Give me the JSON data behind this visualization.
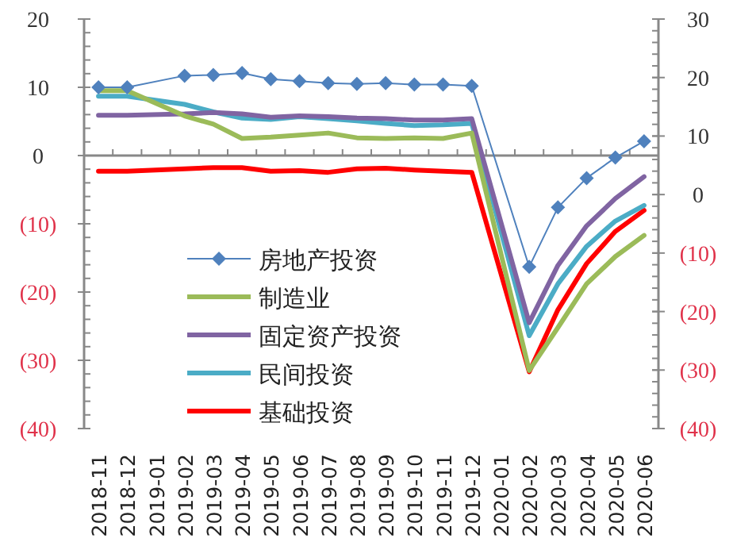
{
  "chart_data": {
    "type": "line",
    "categories": [
      "2018-11",
      "2018-12",
      "2019-01",
      "2019-02",
      "2019-03",
      "2019-04",
      "2019-05",
      "2019-06",
      "2019-07",
      "2019-08",
      "2019-09",
      "2019-10",
      "2019-11",
      "2019-12",
      "2020-01",
      "2020-02",
      "2020-03",
      "2020-04",
      "2020-05",
      "2020-06"
    ],
    "ylim": [
      -40,
      20
    ],
    "yticks": [
      {
        "value": -40,
        "label": "(40)"
      },
      {
        "value": -30,
        "label": "(30)"
      },
      {
        "value": -20,
        "label": "(20)"
      },
      {
        "value": -10,
        "label": "(10)"
      },
      0,
      10,
      20
    ],
    "y2lim": [
      -40,
      30
    ],
    "y2ticks": [
      {
        "value": -40,
        "label": "(40)"
      },
      {
        "value": -30,
        "label": "(30)"
      },
      {
        "value": -20,
        "label": "(20)"
      },
      {
        "value": -10,
        "label": "(10)"
      },
      0,
      10,
      20,
      30
    ],
    "legend": "bottom left",
    "series": [
      {
        "name": "房地产投资",
        "color": "#4f81bd",
        "marker": "diamond",
        "values": [
          10.0,
          10.0,
          null,
          11.7,
          11.8,
          12.1,
          11.2,
          10.9,
          10.6,
          10.5,
          10.6,
          10.4,
          10.4,
          10.2,
          null,
          -16.3,
          -7.6,
          -3.3,
          -0.3,
          2.1
        ]
      },
      {
        "name": "制造业",
        "color": "#9bbb59",
        "values": [
          9.5,
          9.5,
          null,
          5.8,
          4.6,
          2.5,
          2.7,
          3.0,
          3.3,
          2.6,
          2.5,
          2.6,
          2.5,
          3.3,
          null,
          -31.5,
          -25.2,
          -18.8,
          -14.8,
          -11.7
        ]
      },
      {
        "name": "固定资产投资",
        "color": "#8064a2",
        "values": [
          5.9,
          5.9,
          null,
          6.1,
          6.3,
          6.1,
          5.6,
          5.8,
          5.7,
          5.5,
          5.4,
          5.2,
          5.2,
          5.4,
          null,
          -24.5,
          -16.1,
          -10.3,
          -6.3,
          -3.1
        ]
      },
      {
        "name": "民间投资",
        "color": "#4bacc6",
        "values": [
          8.7,
          8.7,
          null,
          7.5,
          6.4,
          5.5,
          5.3,
          5.7,
          5.4,
          5.1,
          4.7,
          4.4,
          4.5,
          4.7,
          null,
          -26.4,
          -18.8,
          -13.3,
          -9.6,
          -7.3
        ]
      },
      {
        "name": "基础投资",
        "color": "#ff0000",
        "axis": "y2",
        "values": [
          4.0,
          4.0,
          null,
          4.4,
          4.6,
          4.6,
          4.0,
          4.1,
          3.8,
          4.4,
          4.5,
          4.2,
          4.0,
          3.8,
          null,
          -30.3,
          -19.7,
          -11.8,
          -6.3,
          -2.7
        ]
      }
    ]
  }
}
